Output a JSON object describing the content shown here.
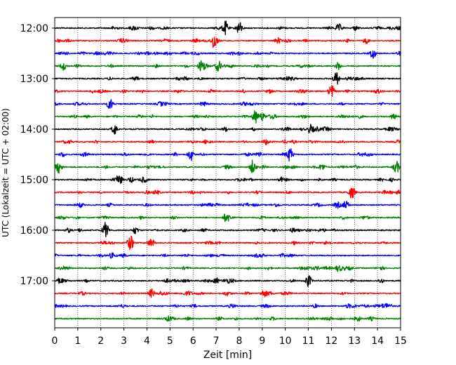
{
  "chart_data": {
    "type": "line",
    "title": "",
    "xlabel": "Zeit  [min]",
    "ylabel": "UTC (Lokalzeit = UTC + 02:00)",
    "xlim": [
      0,
      15
    ],
    "x_ticks": [
      0,
      1,
      2,
      3,
      4,
      5,
      6,
      7,
      8,
      9,
      10,
      11,
      12,
      13,
      14,
      15
    ],
    "y_ticks": [
      "12:00",
      "13:00",
      "14:00",
      "15:00",
      "16:00",
      "17:00"
    ],
    "grid": "vertical dotted",
    "trace_interval_minutes": 15,
    "trace_colors": [
      "#000000",
      "#ff0000",
      "#0000ff",
      "#008000"
    ],
    "traces": [
      {
        "start": "12:00",
        "color": "#000000",
        "events": [
          {
            "t": 7.4,
            "amp": 1.0
          },
          {
            "t": 8.0,
            "amp": 0.9
          },
          {
            "t": 12.3,
            "amp": 0.3
          },
          {
            "t": 14.0,
            "amp": 0.25
          }
        ]
      },
      {
        "start": "12:15",
        "color": "#ff0000",
        "events": [
          {
            "t": 6.9,
            "amp": 1.0
          },
          {
            "t": 13.5,
            "amp": 0.4
          }
        ]
      },
      {
        "start": "12:30",
        "color": "#0000ff",
        "events": [
          {
            "t": 13.8,
            "amp": 0.7
          },
          {
            "t": 8.0,
            "amp": 0.2
          }
        ]
      },
      {
        "start": "12:45",
        "color": "#008000",
        "events": [
          {
            "t": 0.4,
            "amp": 0.45
          },
          {
            "t": 6.4,
            "amp": 0.9
          },
          {
            "t": 7.1,
            "amp": 0.6
          },
          {
            "t": 12.3,
            "amp": 0.5
          }
        ]
      },
      {
        "start": "13:00",
        "color": "#000000",
        "events": [
          {
            "t": 12.2,
            "amp": 1.0
          }
        ]
      },
      {
        "start": "13:15",
        "color": "#ff0000",
        "events": [
          {
            "t": 12.0,
            "amp": 0.9
          },
          {
            "t": 3.0,
            "amp": 0.2
          }
        ]
      },
      {
        "start": "13:30",
        "color": "#0000ff",
        "events": [
          {
            "t": 2.4,
            "amp": 0.8
          }
        ]
      },
      {
        "start": "13:45",
        "color": "#008000",
        "events": [
          {
            "t": 8.7,
            "amp": 0.95
          },
          {
            "t": 9.0,
            "amp": 0.6
          },
          {
            "t": 14.7,
            "amp": 0.4
          }
        ]
      },
      {
        "start": "14:00",
        "color": "#000000",
        "events": [
          {
            "t": 2.6,
            "amp": 0.75
          },
          {
            "t": 7.4,
            "amp": 0.3
          },
          {
            "t": 11.4,
            "amp": 0.3
          }
        ]
      },
      {
        "start": "14:15",
        "color": "#ff0000",
        "events": [
          {
            "t": 4.2,
            "amp": 0.2
          },
          {
            "t": 10.0,
            "amp": 0.25
          }
        ]
      },
      {
        "start": "14:30",
        "color": "#0000ff",
        "events": [
          {
            "t": 5.9,
            "amp": 0.75
          },
          {
            "t": 10.2,
            "amp": 1.0
          },
          {
            "t": 4.0,
            "amp": 0.2
          }
        ]
      },
      {
        "start": "14:45",
        "color": "#008000",
        "events": [
          {
            "t": 0.2,
            "amp": 0.8
          },
          {
            "t": 8.6,
            "amp": 0.8
          },
          {
            "t": 11.6,
            "amp": 0.5
          },
          {
            "t": 14.8,
            "amp": 0.7
          }
        ]
      },
      {
        "start": "15:00",
        "color": "#000000",
        "events": [
          {
            "t": 2.8,
            "amp": 0.8
          },
          {
            "t": 3.3,
            "amp": 0.4
          },
          {
            "t": 9.8,
            "amp": 0.3
          }
        ]
      },
      {
        "start": "15:15",
        "color": "#ff0000",
        "events": [
          {
            "t": 12.9,
            "amp": 0.7
          },
          {
            "t": 4.0,
            "amp": 0.2
          }
        ]
      },
      {
        "start": "15:30",
        "color": "#0000ff",
        "events": [
          {
            "t": 12.6,
            "amp": 0.4
          },
          {
            "t": 2.4,
            "amp": 0.2
          }
        ]
      },
      {
        "start": "15:45",
        "color": "#008000",
        "events": [
          {
            "t": 9.0,
            "amp": 0.2
          }
        ]
      },
      {
        "start": "16:00",
        "color": "#000000",
        "events": [
          {
            "t": 2.2,
            "amp": 1.0
          },
          {
            "t": 0.6,
            "amp": 0.3
          },
          {
            "t": 3.5,
            "amp": 0.3
          }
        ]
      },
      {
        "start": "16:15",
        "color": "#ff0000",
        "events": [
          {
            "t": 3.3,
            "amp": 0.95
          },
          {
            "t": 4.2,
            "amp": 0.3
          }
        ]
      },
      {
        "start": "16:30",
        "color": "#0000ff",
        "events": [
          {
            "t": 9.0,
            "amp": 0.2
          }
        ]
      },
      {
        "start": "16:45",
        "color": "#008000",
        "events": [
          {
            "t": 12.3,
            "amp": 0.45
          }
        ]
      },
      {
        "start": "17:00",
        "color": "#000000",
        "events": [
          {
            "t": 11.0,
            "amp": 0.85
          },
          {
            "t": 7.0,
            "amp": 0.4
          }
        ]
      },
      {
        "start": "17:15",
        "color": "#ff0000",
        "events": [
          {
            "t": 4.2,
            "amp": 0.6
          },
          {
            "t": 9.1,
            "amp": 0.3
          }
        ]
      },
      {
        "start": "17:30",
        "color": "#0000ff",
        "events": [
          {
            "t": 11.3,
            "amp": 0.25
          },
          {
            "t": 14.3,
            "amp": 0.2
          }
        ]
      },
      {
        "start": "17:45",
        "color": "#008000",
        "events": [
          {
            "t": 5.8,
            "amp": 0.2
          }
        ]
      }
    ]
  }
}
